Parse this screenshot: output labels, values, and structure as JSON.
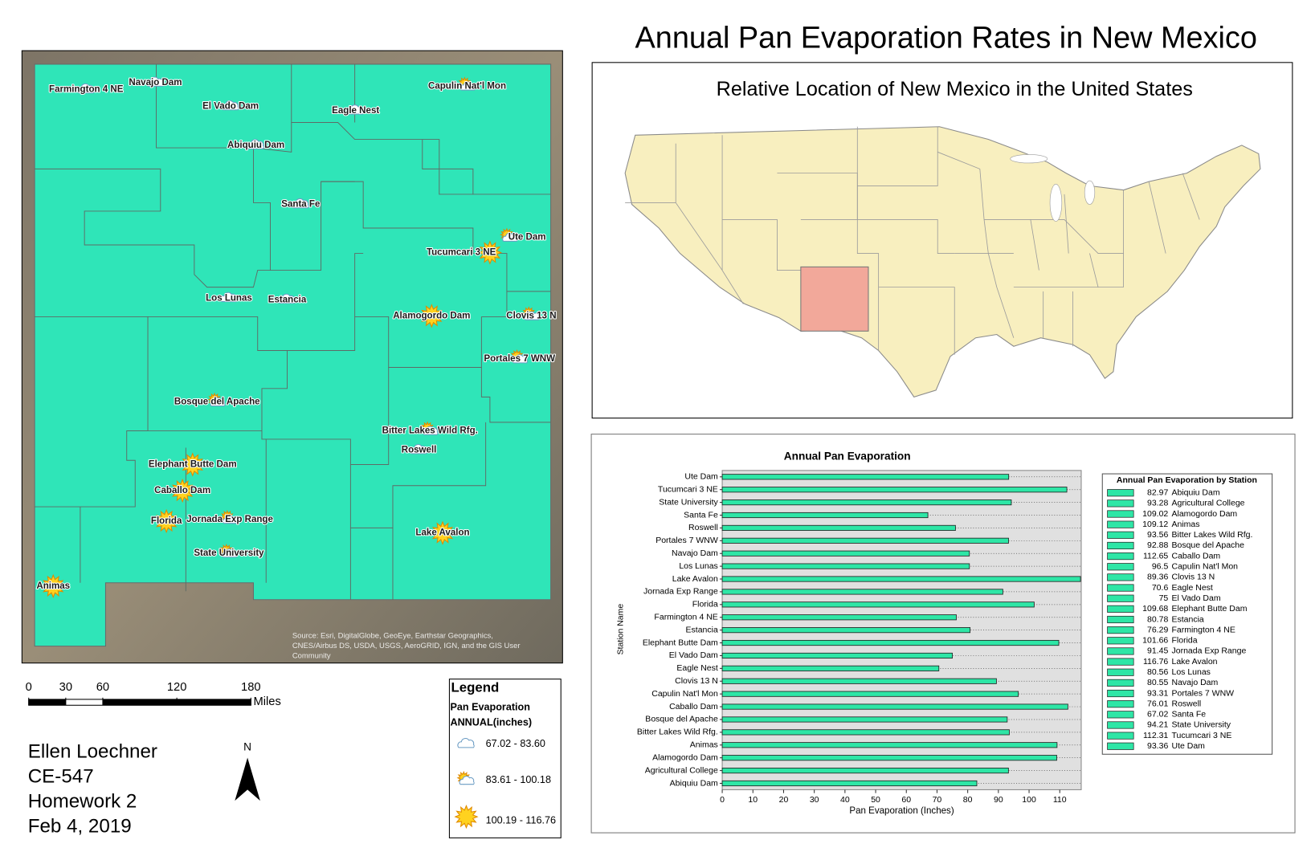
{
  "title": "Annual Pan Evaporation Rates in New Mexico",
  "map": {
    "source": [
      "Source: Esri, DigitalGlobe, GeoEye, Earthstar Geographics,",
      "CNES/Airbus DS, USDA, USGS, AeroGRID, IGN, and the GIS User",
      "Community"
    ]
  },
  "scale_bar": {
    "ticks": [
      0,
      30,
      60,
      120,
      180
    ],
    "unit": "Miles"
  },
  "author": [
    "Ellen Loechner",
    "CE-547",
    "Homework 2",
    "Feb 4, 2019"
  ],
  "north": "N",
  "legend": {
    "title": "Legend",
    "field": "Pan Evaporation",
    "subfield": "ANNUAL(inches)",
    "classes": [
      {
        "label": "67.02 - 83.60",
        "min": 67.02,
        "max": 83.6,
        "icon": "cloud"
      },
      {
        "label": "83.61 - 100.18",
        "min": 83.61,
        "max": 100.18,
        "icon": "partly"
      },
      {
        "label": "100.19 - 116.76",
        "min": 100.19,
        "max": 116.76,
        "icon": "sun"
      }
    ]
  },
  "inset": {
    "title": "Relative Location of New Mexico in the United States"
  },
  "chart_data": {
    "type": "hbar",
    "title": "Annual Pan Evaporation",
    "xlabel": "Pan Evaporation (Inches)",
    "ylabel": "Station Name",
    "legend_title": "Annual Pan Evaporation by Station",
    "color": "#2ee6a6",
    "categories": [
      "Abiquiu Dam",
      "Agricultural College",
      "Alamogordo Dam",
      "Animas",
      "Bitter Lakes Wild Rfg.",
      "Bosque del Apache",
      "Caballo Dam",
      "Capulin Nat'l Mon",
      "Clovis 13 N",
      "Eagle Nest",
      "El Vado Dam",
      "Elephant Butte Dam",
      "Estancia",
      "Farmington 4 NE",
      "Florida",
      "Jornada Exp Range",
      "Lake Avalon",
      "Los Lunas",
      "Navajo Dam",
      "Portales 7 WNW",
      "Roswell",
      "Santa Fe",
      "State University",
      "Tucumcari 3 NE",
      "Ute Dam"
    ],
    "values": [
      82.97,
      93.28,
      109.02,
      109.12,
      93.56,
      92.88,
      112.65,
      96.5,
      89.36,
      70.6,
      75,
      109.68,
      80.78,
      76.29,
      101.66,
      91.45,
      116.76,
      80.56,
      80.55,
      93.31,
      76.01,
      67.02,
      94.21,
      112.31,
      93.36
    ],
    "xlim": [
      0,
      117
    ],
    "xticks": [
      0,
      10,
      20,
      30,
      40,
      50,
      60,
      70,
      80,
      90,
      100,
      110
    ],
    "grid": true
  }
}
